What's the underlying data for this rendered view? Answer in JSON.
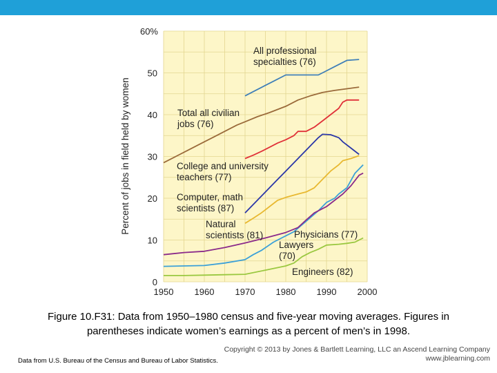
{
  "chart_data": {
    "type": "line",
    "ylabel": "Percent of jobs in field held by women",
    "xlabel": "",
    "xlim": [
      1950,
      2000
    ],
    "ylim": [
      0,
      60
    ],
    "x_ticks": [
      "1950",
      "1960",
      "1970",
      "1980",
      "1990",
      "2000"
    ],
    "y_ticks": [
      "0",
      "10",
      "20",
      "30",
      "40",
      "50",
      "60%"
    ],
    "grid": true,
    "series": [
      {
        "name": "All professional specialties (76)",
        "color": "#3f7fb8",
        "points": [
          [
            1970,
            44.5
          ],
          [
            1972,
            45.5
          ],
          [
            1975,
            47
          ],
          [
            1977,
            48
          ],
          [
            1980,
            49.5
          ],
          [
            1983,
            49.5
          ],
          [
            1986,
            49.5
          ],
          [
            1988,
            49.5
          ],
          [
            1990,
            50.5
          ],
          [
            1992,
            51.5
          ],
          [
            1995,
            53
          ],
          [
            1998,
            53.2
          ]
        ]
      },
      {
        "name": "Total all civilian jobs (76)",
        "color": "#9a6a3a",
        "points": [
          [
            1950,
            28.5
          ],
          [
            1953,
            30
          ],
          [
            1956,
            31.5
          ],
          [
            1959,
            33
          ],
          [
            1962,
            34.5
          ],
          [
            1965,
            36
          ],
          [
            1968,
            37.5
          ],
          [
            1970,
            38.3
          ],
          [
            1973,
            39.5
          ],
          [
            1976,
            40.5
          ],
          [
            1980,
            42
          ],
          [
            1983,
            43.5
          ],
          [
            1986,
            44.5
          ],
          [
            1989,
            45.3
          ],
          [
            1992,
            45.8
          ],
          [
            1995,
            46.2
          ],
          [
            1998,
            46.6
          ]
        ]
      },
      {
        "name": "Physicians (77)",
        "color": "#e03038",
        "points": [
          [
            1970,
            29.5
          ],
          [
            1972,
            30.3
          ],
          [
            1974,
            31.2
          ],
          [
            1976,
            32.2
          ],
          [
            1978,
            33.2
          ],
          [
            1980,
            34
          ],
          [
            1982,
            35
          ],
          [
            1983,
            36
          ],
          [
            1985,
            36
          ],
          [
            1987,
            37
          ],
          [
            1989,
            38.5
          ],
          [
            1991,
            40
          ],
          [
            1993,
            41.5
          ],
          [
            1994,
            43
          ],
          [
            1995,
            43.5
          ],
          [
            1998,
            43.5
          ]
        ]
      },
      {
        "name": "College and university teachers (77)",
        "color": "#2a36a8",
        "points": [
          [
            1970,
            16.5
          ],
          [
            1972,
            18.5
          ],
          [
            1974,
            20.5
          ],
          [
            1976,
            22.5
          ],
          [
            1978,
            24.5
          ],
          [
            1980,
            26.5
          ],
          [
            1982,
            28.5
          ],
          [
            1984,
            30.5
          ],
          [
            1986,
            32.5
          ],
          [
            1988,
            34.5
          ],
          [
            1989,
            35.3
          ],
          [
            1991,
            35.2
          ],
          [
            1993,
            34.5
          ],
          [
            1994,
            33.5
          ],
          [
            1996,
            32
          ],
          [
            1998,
            30.5
          ]
        ]
      },
      {
        "name": "Lawyers (70)",
        "color": "#e8b830",
        "points": [
          [
            1970,
            14
          ],
          [
            1972,
            15.2
          ],
          [
            1974,
            16.5
          ],
          [
            1976,
            18
          ],
          [
            1978,
            19.5
          ],
          [
            1980,
            20.2
          ],
          [
            1983,
            21
          ],
          [
            1985,
            21.5
          ],
          [
            1987,
            22.5
          ],
          [
            1989,
            24.5
          ],
          [
            1991,
            26.5
          ],
          [
            1993,
            28
          ],
          [
            1994,
            29
          ],
          [
            1996,
            29.5
          ],
          [
            1998,
            30.2
          ]
        ]
      },
      {
        "name": "Computer, math scientists (87)",
        "color": "#3aa0d8",
        "points": [
          [
            1950,
            3.7
          ],
          [
            1955,
            3.8
          ],
          [
            1960,
            3.9
          ],
          [
            1965,
            4.5
          ],
          [
            1970,
            5.3
          ],
          [
            1972,
            6.5
          ],
          [
            1974,
            7.5
          ],
          [
            1977,
            9.5
          ],
          [
            1980,
            11
          ],
          [
            1982,
            12
          ],
          [
            1985,
            14.5
          ],
          [
            1988,
            17
          ],
          [
            1990,
            19
          ],
          [
            1992,
            20
          ],
          [
            1993,
            21
          ],
          [
            1995,
            22.5
          ],
          [
            1997,
            26
          ],
          [
            1999,
            28
          ]
        ]
      },
      {
        "name": "Natural scientists (81)",
        "color": "#8a2a8a",
        "points": [
          [
            1950,
            6.5
          ],
          [
            1955,
            7
          ],
          [
            1960,
            7.3
          ],
          [
            1965,
            8.2
          ],
          [
            1970,
            9.3
          ],
          [
            1975,
            10.5
          ],
          [
            1980,
            11.8
          ],
          [
            1983,
            13
          ],
          [
            1985,
            14.8
          ],
          [
            1987,
            16.5
          ],
          [
            1990,
            18
          ],
          [
            1992,
            19.5
          ],
          [
            1994,
            21
          ],
          [
            1996,
            23
          ],
          [
            1998,
            25.5
          ],
          [
            1999,
            26
          ]
        ]
      },
      {
        "name": "Engineers (82)",
        "color": "#9ac840",
        "points": [
          [
            1950,
            1.5
          ],
          [
            1955,
            1.5
          ],
          [
            1960,
            1.6
          ],
          [
            1965,
            1.7
          ],
          [
            1970,
            1.8
          ],
          [
            1975,
            2.8
          ],
          [
            1980,
            3.8
          ],
          [
            1982,
            4.5
          ],
          [
            1984,
            6
          ],
          [
            1986,
            7
          ],
          [
            1988,
            7.8
          ],
          [
            1990,
            8.8
          ],
          [
            1993,
            9
          ],
          [
            1995,
            9.2
          ],
          [
            1997,
            9.5
          ],
          [
            1999,
            10.5
          ]
        ]
      }
    ],
    "annotations": [
      {
        "series": 0,
        "lines": [
          "All professional",
          "specialties (76)"
        ]
      },
      {
        "series": 1,
        "lines": [
          "Total all civilian",
          "jobs (76)"
        ]
      },
      {
        "series": 3,
        "lines": [
          "College and university",
          "teachers (77)"
        ]
      },
      {
        "series": 5,
        "lines": [
          "Computer, math",
          "scientists (87)"
        ]
      },
      {
        "series": 6,
        "lines": [
          "Natural",
          "scientists (81)"
        ]
      },
      {
        "series": 2,
        "lines": [
          "Physicians (77)"
        ]
      },
      {
        "series": 4,
        "lines": [
          "Lawyers",
          "(70)"
        ]
      },
      {
        "series": 7,
        "lines": [
          "Engineers (82)"
        ]
      }
    ]
  },
  "caption": {
    "line1": "Figure 10.F31: Data from 1950–1980 census and five-year moving averages. Figures in",
    "line2": "parentheses indicate women’s earnings as a percent of men’s  in 1998."
  },
  "copyright": {
    "line1": "Copyright © 2013 by Jones & Bartlett Learning, LLC an Ascend Learning Company",
    "line2": "www.jblearning.com"
  },
  "source": "Data from U.S. Bureau of the Census and Bureau of Labor Statistics.",
  "colors": {
    "accent_bar": "#1fa0d8",
    "plot_bg": "#fdf6c8",
    "grid": "#e3d690"
  }
}
